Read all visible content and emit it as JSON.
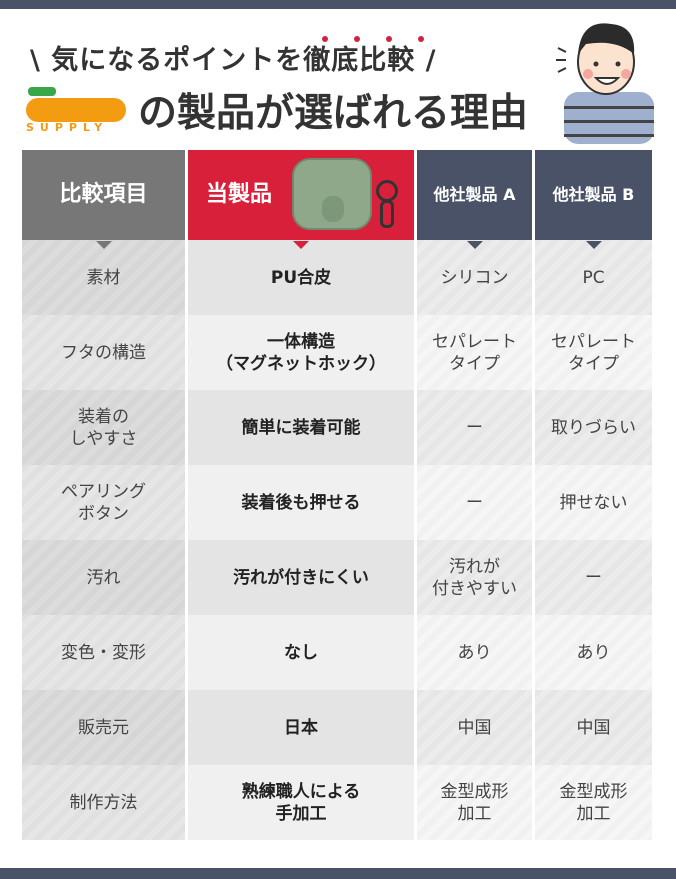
{
  "header": {
    "subtitle": "\\ 気になるポイントを徹底比較 /",
    "logo_text": "SUPPLY",
    "title": "の製品が選ばれる理由"
  },
  "colors": {
    "accent": "#d9203a",
    "navy": "#4a5268",
    "gray": "#777777",
    "logo_orange": "#f39c12",
    "logo_green": "#3aa64a"
  },
  "table": {
    "headers": [
      "比較項目",
      "当製品",
      "他社製品 A",
      "他社製品 B"
    ],
    "rows": [
      {
        "label": "素材",
        "ours": "PU合皮",
        "a": "シリコン",
        "b": "PC"
      },
      {
        "label": "フタの構造",
        "ours": "一体構造\n（マグネットホック）",
        "a": "セパレート\nタイプ",
        "b": "セパレート\nタイプ"
      },
      {
        "label": "装着の\nしやすさ",
        "ours": "簡単に装着可能",
        "a": "ー",
        "b": "取りづらい"
      },
      {
        "label": "ペアリング\nボタン",
        "ours": "装着後も押せる",
        "a": "ー",
        "b": "押せない"
      },
      {
        "label": "汚れ",
        "ours": "汚れが付きにくい",
        "a": "汚れが\n付きやすい",
        "b": "ー"
      },
      {
        "label": "変色・変形",
        "ours": "なし",
        "a": "あり",
        "b": "あり"
      },
      {
        "label": "販売元",
        "ours": "日本",
        "a": "中国",
        "b": "中国"
      },
      {
        "label": "制作方法",
        "ours": "熟練職人による\n手加工",
        "a": "金型成形\n加工",
        "b": "金型成形\n加工"
      }
    ]
  }
}
